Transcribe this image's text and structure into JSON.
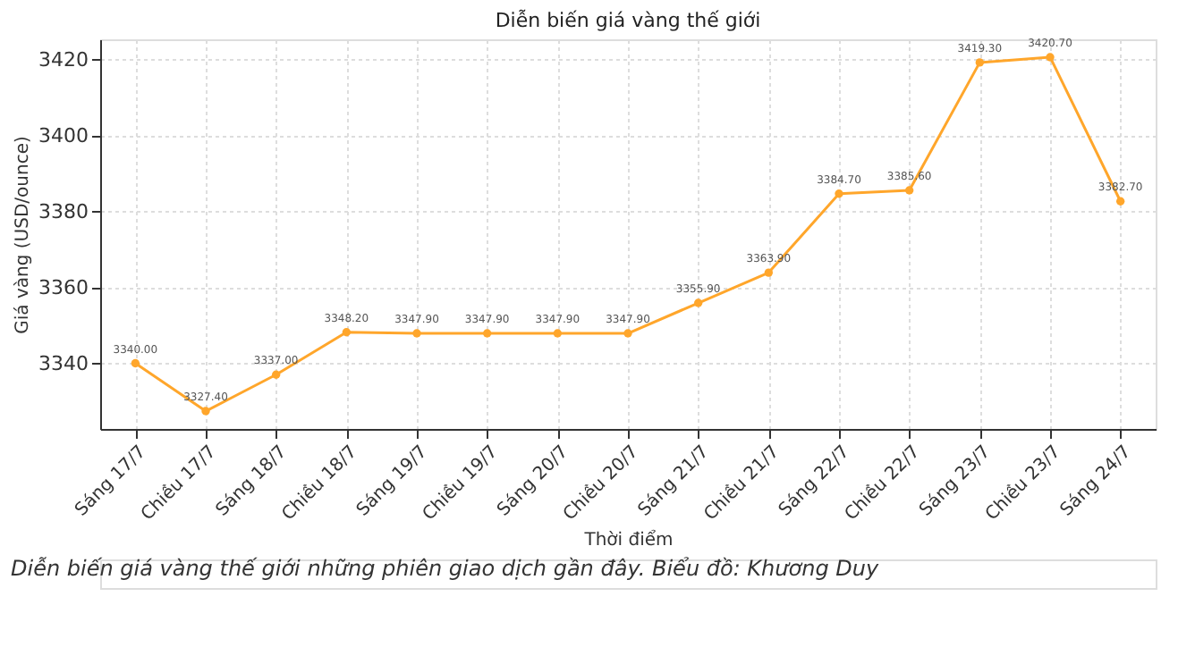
{
  "chart_data": {
    "type": "line",
    "title": "Diễn biến giá vàng thế giới",
    "xlabel": "Thời điểm",
    "ylabel": "Giá vàng (USD/ounce)",
    "categories": [
      "Sáng 17/7",
      "Chiều 17/7",
      "Sáng 18/7",
      "Chiều 18/7",
      "Sáng 19/7",
      "Chiều 19/7",
      "Sáng 20/7",
      "Chiều 20/7",
      "Sáng 21/7",
      "Chiều 21/7",
      "Sáng 22/7",
      "Chiều 22/7",
      "Sáng 23/7",
      "Chiều 23/7",
      "Sáng 24/7"
    ],
    "series": [
      {
        "color": "#ffa62b",
        "values": [
          3340.0,
          3327.4,
          3337.0,
          3348.2,
          3347.9,
          3347.9,
          3347.9,
          3347.9,
          3355.9,
          3363.9,
          3384.7,
          3385.6,
          3419.3,
          3420.7,
          3382.7
        ],
        "value_labels": [
          "3340.00",
          "3327.40",
          "3337.00",
          "3348.20",
          "3347.90",
          "3347.90",
          "3347.90",
          "3347.90",
          "3355.90",
          "3363.90",
          "3384.70",
          "3385.60",
          "3419.30",
          "3420.70",
          "3382.70"
        ]
      }
    ],
    "ylim": [
      3322.7,
      3425.4
    ],
    "yticks": [
      3340,
      3360,
      3380,
      3400,
      3420
    ],
    "grid": true,
    "marker": "circle",
    "line_style": "solid",
    "annotations": [
      "Diễn biến giá vàng thế giới những phiên giao dịch gần đây. Biểu đồ: Khương Duy"
    ]
  }
}
